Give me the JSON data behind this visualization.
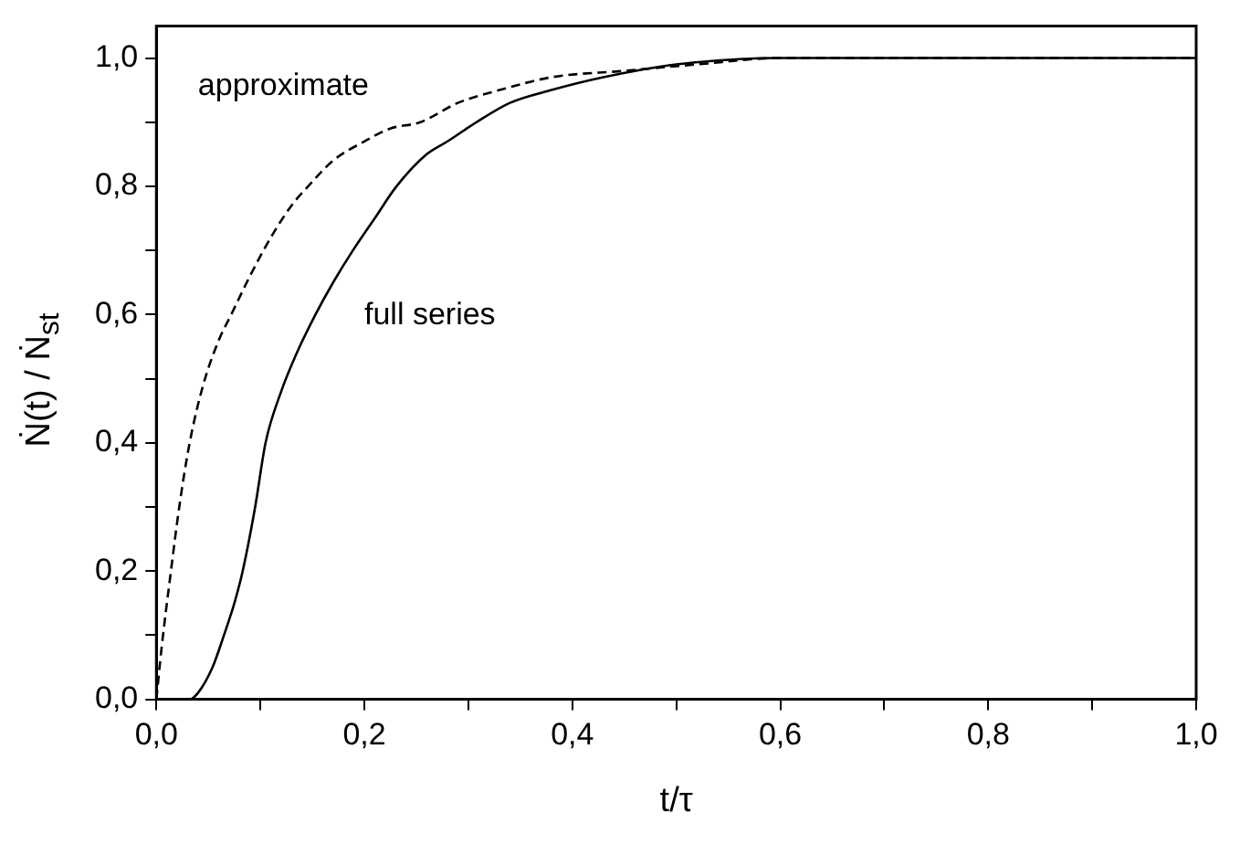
{
  "chart_data": {
    "type": "line",
    "xlabel": "t/τ",
    "ylabel": "Ṅ(t) / Ṅ$_{st}$",
    "xlim": [
      0,
      1
    ],
    "ylim": [
      0,
      1.05
    ],
    "xticks": [
      {
        "value": 0,
        "label": "0,0"
      },
      {
        "value": 0.1,
        "label": null
      },
      {
        "value": 0.2,
        "label": "0,2"
      },
      {
        "value": 0.3,
        "label": null
      },
      {
        "value": 0.4,
        "label": "0,4"
      },
      {
        "value": 0.5,
        "label": null
      },
      {
        "value": 0.6,
        "label": "0,6"
      },
      {
        "value": 0.7,
        "label": null
      },
      {
        "value": 0.8,
        "label": "0,8"
      },
      {
        "value": 0.9,
        "label": null
      },
      {
        "value": 1,
        "label": "1,0"
      }
    ],
    "yticks": [
      {
        "value": 0,
        "label": "0,0"
      },
      {
        "value": 0.1,
        "label": null
      },
      {
        "value": 0.2,
        "label": "0,2"
      },
      {
        "value": 0.3,
        "label": null
      },
      {
        "value": 0.4,
        "label": "0,4"
      },
      {
        "value": 0.5,
        "label": null
      },
      {
        "value": 0.6,
        "label": "0,6"
      },
      {
        "value": 0.7,
        "label": null
      },
      {
        "value": 0.8,
        "label": "0,8"
      },
      {
        "value": 0.9,
        "label": null
      },
      {
        "value": 1,
        "label": "1,0"
      }
    ],
    "grid": false,
    "legend": false,
    "marker": "none",
    "series": [
      {
        "name": "approximate",
        "color": "#000000",
        "line_style": "dashed",
        "x": [
          0,
          0.005,
          0.014,
          0.022,
          0.032,
          0.045,
          0.06,
          0.072,
          0.09,
          0.11,
          0.13,
          0.146,
          0.17,
          0.2,
          0.225,
          0.254,
          0.29,
          0.33,
          0.38,
          0.45,
          0.52,
          0.6,
          0.7,
          0.8,
          0.9,
          1
        ],
        "values": [
          0,
          0.08,
          0.2,
          0.3,
          0.4,
          0.49,
          0.56,
          0.6,
          0.66,
          0.72,
          0.77,
          0.8,
          0.84,
          0.87,
          0.89,
          0.9,
          0.93,
          0.95,
          0.97,
          0.98,
          0.99,
          1,
          1,
          1,
          1,
          1
        ]
      },
      {
        "name": "full series",
        "color": "#000000",
        "line_style": "solid",
        "x": [
          0,
          0.032,
          0.04,
          0.054,
          0.065,
          0.075,
          0.083,
          0.095,
          0.105,
          0.12,
          0.135,
          0.153,
          0.17,
          0.189,
          0.21,
          0.231,
          0.26,
          0.28,
          0.308,
          0.34,
          0.38,
          0.43,
          0.5,
          0.6,
          0.7,
          0.8,
          0.9,
          1
        ],
        "values": [
          0,
          0,
          0.01,
          0.05,
          0.1,
          0.15,
          0.2,
          0.3,
          0.4,
          0.48,
          0.54,
          0.6,
          0.65,
          0.7,
          0.75,
          0.8,
          0.85,
          0.87,
          0.9,
          0.93,
          0.95,
          0.97,
          0.99,
          1,
          1,
          1,
          1,
          1
        ]
      }
    ]
  }
}
